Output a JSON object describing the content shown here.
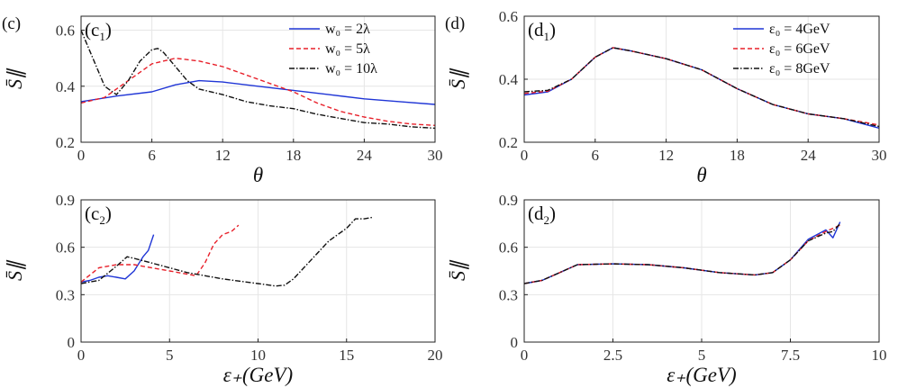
{
  "chart_data": [
    {
      "id": "c1",
      "type": "line",
      "outer_label": "(c)",
      "title": "(c",
      "title_sub": "1",
      "title_end": ")",
      "xlabel": "θ",
      "ylabel": "S̄∥",
      "xlim": [
        0,
        30
      ],
      "ylim": [
        0.2,
        0.65
      ],
      "xticks": [
        0,
        6,
        12,
        18,
        24,
        30
      ],
      "yticks": [
        0.2,
        0.4,
        0.6
      ],
      "xtick_labels": [
        "0",
        "6",
        "12",
        "18",
        "24",
        "30"
      ],
      "ytick_labels": [
        "0.2",
        "0.4",
        "0.6"
      ],
      "series": [
        {
          "name": "w₀ = 2λ",
          "color": "#1f35d6",
          "dash": "solid",
          "x": [
            0,
            3,
            6,
            8,
            10,
            12,
            15,
            18,
            21,
            24,
            27,
            30
          ],
          "y": [
            0.345,
            0.365,
            0.38,
            0.405,
            0.42,
            0.415,
            0.4,
            0.385,
            0.37,
            0.355,
            0.345,
            0.335
          ]
        },
        {
          "name": "w₀ = 5λ",
          "color": "#e8202a",
          "dash": "dashed",
          "x": [
            0,
            2,
            4,
            6,
            8,
            10,
            12,
            14,
            16,
            18,
            20,
            22,
            24,
            26,
            28,
            30
          ],
          "y": [
            0.34,
            0.36,
            0.42,
            0.48,
            0.5,
            0.49,
            0.47,
            0.44,
            0.41,
            0.38,
            0.34,
            0.31,
            0.29,
            0.275,
            0.265,
            0.26
          ]
        },
        {
          "name": "w₀ = 10λ",
          "color": "#111111",
          "dash": "dashdot",
          "x": [
            0,
            1,
            2,
            3,
            4,
            5,
            6,
            6.5,
            7,
            8,
            9,
            10,
            12,
            14,
            16,
            18,
            20,
            22,
            24,
            26,
            28,
            30
          ],
          "y": [
            0.6,
            0.5,
            0.4,
            0.37,
            0.42,
            0.49,
            0.53,
            0.535,
            0.52,
            0.47,
            0.42,
            0.39,
            0.37,
            0.345,
            0.33,
            0.32,
            0.3,
            0.285,
            0.27,
            0.265,
            0.255,
            0.25
          ]
        }
      ]
    },
    {
      "id": "d1",
      "type": "line",
      "outer_label": "(d)",
      "title": "(d",
      "title_sub": "1",
      "title_end": ")",
      "xlabel": "θ",
      "ylabel": "S̄∥",
      "xlim": [
        0,
        30
      ],
      "ylim": [
        0.2,
        0.6
      ],
      "xticks": [
        0,
        6,
        12,
        18,
        24,
        30
      ],
      "yticks": [
        0.2,
        0.4,
        0.6
      ],
      "xtick_labels": [
        "0",
        "6",
        "12",
        "18",
        "24",
        "30"
      ],
      "ytick_labels": [
        "0.2",
        "0.4",
        "0.6"
      ],
      "series": [
        {
          "name": "ε₀ = 4GeV",
          "color": "#1f35d6",
          "dash": "solid",
          "x": [
            0,
            2,
            4,
            6,
            7.5,
            9,
            12,
            15,
            18,
            21,
            24,
            27,
            30
          ],
          "y": [
            0.35,
            0.36,
            0.4,
            0.47,
            0.5,
            0.49,
            0.465,
            0.43,
            0.37,
            0.32,
            0.29,
            0.275,
            0.245
          ]
        },
        {
          "name": "ε₀ = 6GeV",
          "color": "#e8202a",
          "dash": "dashed",
          "x": [
            0,
            2,
            4,
            6,
            7.5,
            9,
            12,
            15,
            18,
            21,
            24,
            27,
            30
          ],
          "y": [
            0.355,
            0.362,
            0.4,
            0.47,
            0.5,
            0.49,
            0.465,
            0.43,
            0.37,
            0.32,
            0.29,
            0.275,
            0.255
          ]
        },
        {
          "name": "ε₀ = 8GeV",
          "color": "#111111",
          "dash": "dashdot",
          "x": [
            0,
            2,
            4,
            6,
            7.5,
            9,
            12,
            15,
            18,
            21,
            24,
            27,
            30
          ],
          "y": [
            0.36,
            0.365,
            0.4,
            0.47,
            0.5,
            0.49,
            0.465,
            0.43,
            0.37,
            0.32,
            0.29,
            0.275,
            0.25
          ]
        }
      ]
    },
    {
      "id": "c2",
      "type": "line",
      "title": "(c",
      "title_sub": "2",
      "title_end": ")",
      "xlabel": "ε₊(GeV)",
      "ylabel": "S̄∥",
      "xlim": [
        0,
        20
      ],
      "ylim": [
        0,
        0.9
      ],
      "xticks": [
        0,
        5,
        10,
        15,
        20
      ],
      "yticks": [
        0,
        0.3,
        0.6,
        0.9
      ],
      "xtick_labels": [
        "0",
        "5",
        "10",
        "15",
        "20"
      ],
      "ytick_labels": [
        "0",
        "0.3",
        "0.6",
        "0.9"
      ],
      "series": [
        {
          "name": "w₀ = 2λ",
          "color": "#1f35d6",
          "dash": "solid",
          "x": [
            0,
            0.5,
            1,
            1.5,
            2,
            2.5,
            3,
            3.5,
            3.8,
            4.1
          ],
          "y": [
            0.38,
            0.39,
            0.41,
            0.42,
            0.41,
            0.4,
            0.45,
            0.54,
            0.58,
            0.68
          ]
        },
        {
          "name": "w₀ = 5λ",
          "color": "#e8202a",
          "dash": "dashed",
          "x": [
            0,
            1,
            2,
            3,
            4,
            5,
            6,
            6.5,
            7,
            7.5,
            8,
            8.5,
            8.9
          ],
          "y": [
            0.38,
            0.47,
            0.49,
            0.49,
            0.47,
            0.45,
            0.43,
            0.42,
            0.5,
            0.62,
            0.68,
            0.7,
            0.74
          ]
        },
        {
          "name": "w₀ = 10λ",
          "color": "#111111",
          "dash": "dashdot",
          "x": [
            0,
            1,
            2,
            2.6,
            3,
            4,
            5,
            6,
            8,
            10,
            11,
            11.5,
            12,
            13,
            14,
            15,
            15.5,
            16,
            16.5
          ],
          "y": [
            0.37,
            0.39,
            0.48,
            0.54,
            0.53,
            0.5,
            0.47,
            0.44,
            0.4,
            0.37,
            0.355,
            0.36,
            0.4,
            0.52,
            0.64,
            0.72,
            0.78,
            0.78,
            0.79
          ]
        }
      ]
    },
    {
      "id": "d2",
      "type": "line",
      "title": "(d",
      "title_sub": "2",
      "title_end": ")",
      "xlabel": "ε₊(GeV)",
      "ylabel": "S̄∥",
      "xlim": [
        0,
        10
      ],
      "ylim": [
        0,
        0.9
      ],
      "xticks": [
        0,
        2.5,
        5,
        7.5,
        10
      ],
      "yticks": [
        0,
        0.3,
        0.6,
        0.9
      ],
      "xtick_labels": [
        "0",
        "2.5",
        "5",
        "7.5",
        "10"
      ],
      "ytick_labels": [
        "0",
        "0.3",
        "0.6",
        "0.9"
      ],
      "series": [
        {
          "name": "ε₀ = 4GeV",
          "color": "#1f35d6",
          "dash": "solid",
          "x": [
            0,
            0.5,
            1,
            1.5,
            2.5,
            3.5,
            4.5,
            5.5,
            6.5,
            7,
            7.5,
            8,
            8.5,
            8.7,
            8.9
          ],
          "y": [
            0.37,
            0.39,
            0.44,
            0.49,
            0.495,
            0.49,
            0.47,
            0.44,
            0.425,
            0.44,
            0.52,
            0.65,
            0.71,
            0.66,
            0.76
          ]
        },
        {
          "name": "ε₀ = 6GeV",
          "color": "#e8202a",
          "dash": "dashed",
          "x": [
            0,
            0.5,
            1,
            1.5,
            2.5,
            3.5,
            4.5,
            5.5,
            6.5,
            7,
            7.5,
            8,
            8.5,
            8.7,
            8.9
          ],
          "y": [
            0.37,
            0.39,
            0.44,
            0.49,
            0.495,
            0.49,
            0.47,
            0.44,
            0.425,
            0.44,
            0.52,
            0.64,
            0.7,
            0.72,
            0.74
          ]
        },
        {
          "name": "ε₀ = 8GeV",
          "color": "#111111",
          "dash": "dashdot",
          "x": [
            0,
            0.5,
            1,
            1.5,
            2.5,
            3.5,
            4.5,
            5.5,
            6.5,
            7,
            7.5,
            8,
            8.5,
            8.7,
            8.9
          ],
          "y": [
            0.37,
            0.39,
            0.44,
            0.49,
            0.495,
            0.49,
            0.47,
            0.44,
            0.425,
            0.44,
            0.52,
            0.64,
            0.69,
            0.7,
            0.75
          ]
        }
      ]
    }
  ]
}
